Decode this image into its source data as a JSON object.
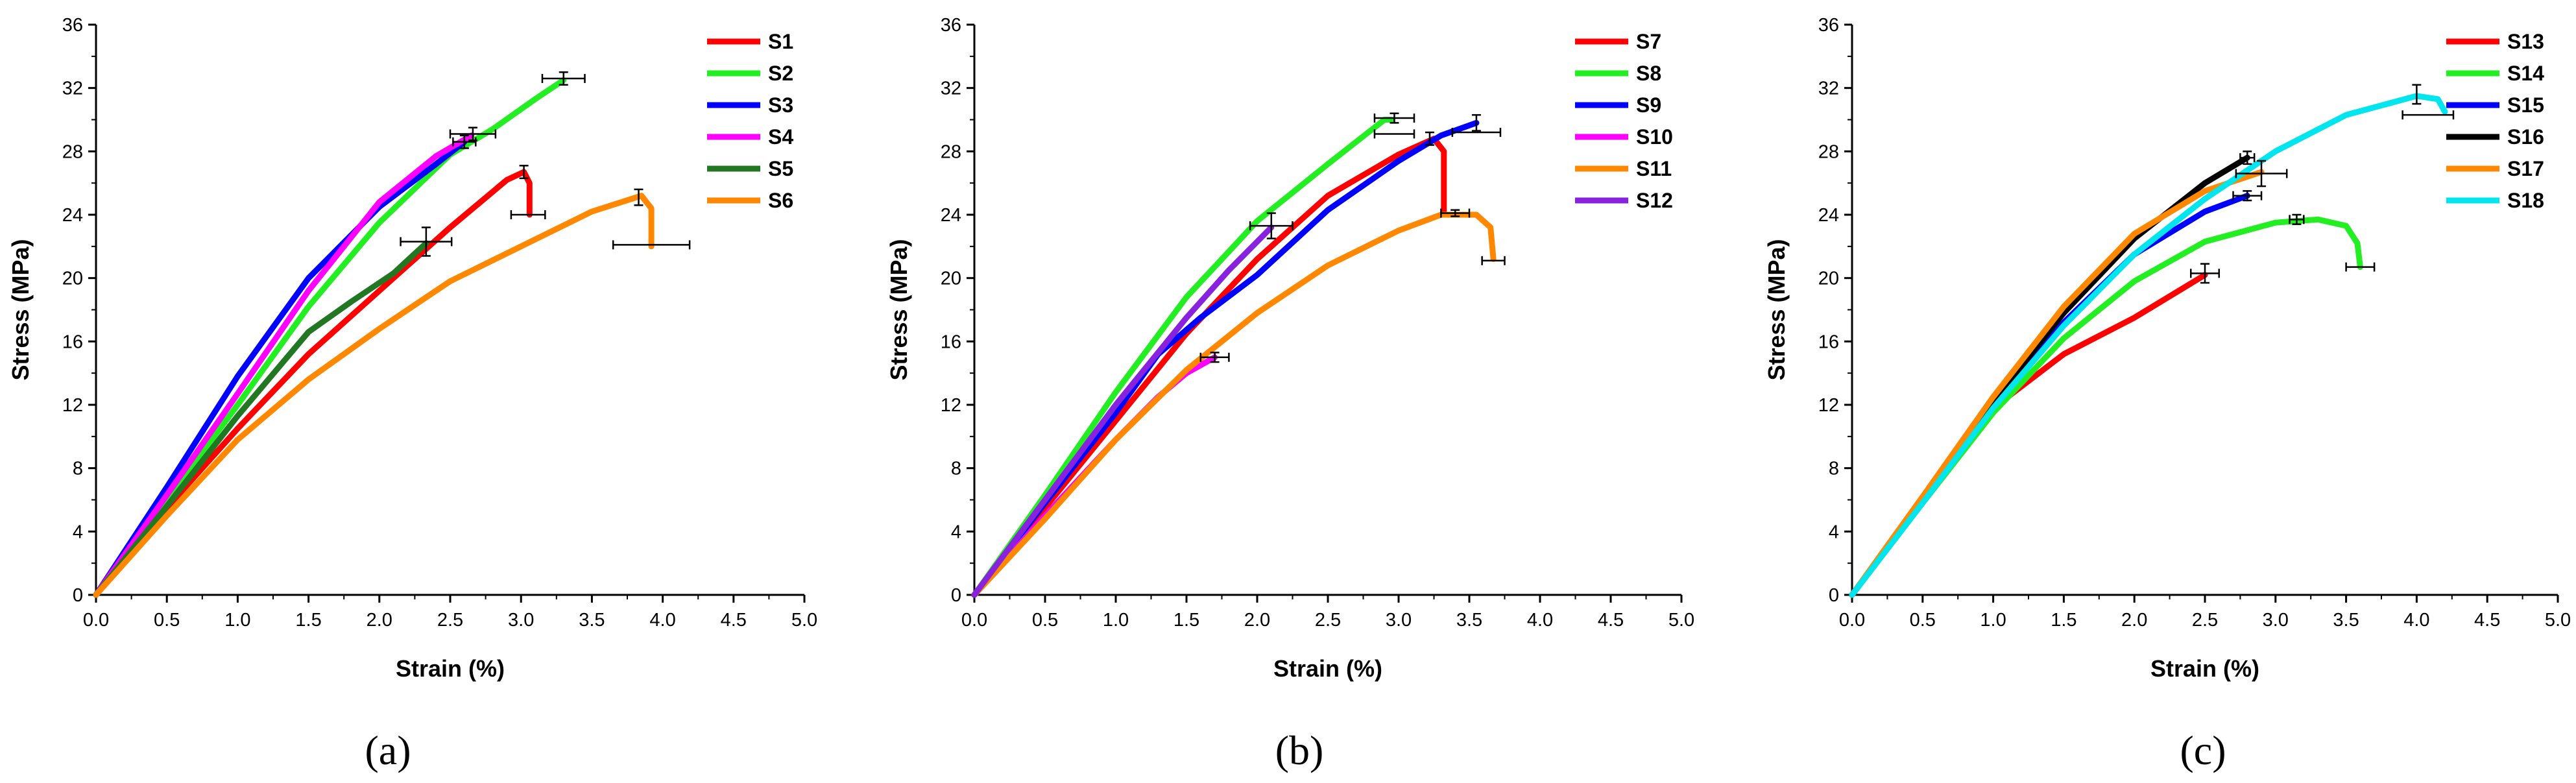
{
  "chart_data": [
    {
      "type": "line",
      "caption": "(a)",
      "xlabel": "Strain (%)",
      "ylabel": "Stress (MPa)",
      "xlim": [
        0,
        5
      ],
      "ylim": [
        0,
        36
      ],
      "xticks": [
        "0.0",
        "0.5",
        "1.0",
        "1.5",
        "2.0",
        "2.5",
        "3.0",
        "3.5",
        "4.0",
        "4.5",
        "5.0"
      ],
      "yticks": [
        "0",
        "4",
        "8",
        "12",
        "16",
        "20",
        "24",
        "28",
        "32",
        "36"
      ],
      "legend_position": "top-right",
      "series": [
        {
          "name": "S1",
          "color": "#ff0000",
          "points": [
            [
              0,
              0
            ],
            [
              0.5,
              5.5
            ],
            [
              1,
              10.5
            ],
            [
              1.5,
              15.2
            ],
            [
              2,
              19.2
            ],
            [
              2.5,
              23.2
            ],
            [
              2.9,
              26.2
            ],
            [
              3.02,
              26.7
            ],
            [
              3.06,
              26
            ],
            [
              3.06,
              24
            ]
          ],
          "err": {
            "x": 3.02,
            "y": 26.7,
            "xerr": 0,
            "yerr": 0.4,
            "x2": 3.05,
            "y2": 24,
            "xerr2": 0.12,
            "yerr2": 0
          }
        },
        {
          "name": "S2",
          "color": "#22ee22",
          "points": [
            [
              0,
              0
            ],
            [
              0.5,
              6
            ],
            [
              1,
              12
            ],
            [
              1.5,
              18.2
            ],
            [
              2,
              23.5
            ],
            [
              2.5,
              27.8
            ],
            [
              2.8,
              29.4
            ],
            [
              3.1,
              31.3
            ],
            [
              3.3,
              32.5
            ]
          ],
          "err": {
            "x": 3.3,
            "y": 32.6,
            "xerr": 0.15,
            "yerr": 0.4
          }
        },
        {
          "name": "S3",
          "color": "#0000ff",
          "points": [
            [
              0,
              0
            ],
            [
              0.5,
              6.8
            ],
            [
              1,
              13.8
            ],
            [
              1.5,
              20
            ],
            [
              2,
              24.5
            ],
            [
              2.4,
              27.2
            ],
            [
              2.6,
              28.6
            ]
          ],
          "err": {
            "x": 2.6,
            "y": 28.6,
            "xerr": 0.08,
            "yerr": 0.4
          }
        },
        {
          "name": "S4",
          "color": "#ff00ff",
          "points": [
            [
              0,
              0
            ],
            [
              0.5,
              6.3
            ],
            [
              1,
              12.7
            ],
            [
              1.5,
              19.2
            ],
            [
              2,
              24.8
            ],
            [
              2.4,
              27.7
            ],
            [
              2.65,
              29
            ]
          ],
          "err": {
            "x": 2.66,
            "y": 29.1,
            "xerr": 0.16,
            "yerr": 0.4
          }
        },
        {
          "name": "S5",
          "color": "#227722",
          "points": [
            [
              0,
              0
            ],
            [
              0.5,
              5.6
            ],
            [
              1,
              11.3
            ],
            [
              1.5,
              16.6
            ],
            [
              1.8,
              18.5
            ],
            [
              2.1,
              20.3
            ],
            [
              2.33,
              22.2
            ]
          ],
          "err": {
            "x": 2.33,
            "y": 22.3,
            "xerr": 0.18,
            "yerr": 0.9
          }
        },
        {
          "name": "S6",
          "color": "#ff8800",
          "points": [
            [
              0,
              0
            ],
            [
              0.5,
              5
            ],
            [
              1,
              9.8
            ],
            [
              1.5,
              13.6
            ],
            [
              2,
              16.8
            ],
            [
              2.5,
              19.8
            ],
            [
              3,
              22
            ],
            [
              3.5,
              24.2
            ],
            [
              3.85,
              25.2
            ],
            [
              3.92,
              24.4
            ],
            [
              3.92,
              22
            ]
          ],
          "err": {
            "x": 3.83,
            "y": 25.1,
            "xerr": 0,
            "yerr": 0.5,
            "x2": 3.92,
            "y2": 22.1,
            "xerr2": 0.27,
            "yerr2": 0
          }
        }
      ]
    },
    {
      "type": "line",
      "caption": "(b)",
      "xlabel": "Strain (%)",
      "ylabel": "Stress (MPa)",
      "xlim": [
        0,
        5
      ],
      "ylim": [
        0,
        36
      ],
      "xticks": [
        "0.0",
        "0.5",
        "1.0",
        "1.5",
        "2.0",
        "2.5",
        "3.0",
        "3.5",
        "4.0",
        "4.5",
        "5.0"
      ],
      "yticks": [
        "0",
        "4",
        "8",
        "12",
        "16",
        "20",
        "24",
        "28",
        "32",
        "36"
      ],
      "legend_position": "top-right",
      "series": [
        {
          "name": "S7",
          "color": "#ff0000",
          "points": [
            [
              0,
              0
            ],
            [
              0.5,
              5.5
            ],
            [
              1,
              11
            ],
            [
              1.5,
              16.5
            ],
            [
              2,
              21.2
            ],
            [
              2.5,
              25.2
            ],
            [
              3,
              27.8
            ],
            [
              3.25,
              28.8
            ],
            [
              3.32,
              28
            ],
            [
              3.32,
              24.2
            ]
          ],
          "err": {
            "x": 3.22,
            "y": 28.8,
            "xerr": 0,
            "yerr": 0.4
          }
        },
        {
          "name": "S8",
          "color": "#22ee22",
          "points": [
            [
              0,
              0
            ],
            [
              0.5,
              6.3
            ],
            [
              1,
              12.8
            ],
            [
              1.5,
              18.8
            ],
            [
              2,
              23.6
            ],
            [
              2.5,
              27.2
            ],
            [
              2.9,
              30
            ],
            [
              2.95,
              30
            ]
          ],
          "err": {
            "x": 2.97,
            "y": 30.1,
            "xerr": 0.14,
            "yerr": 0.3,
            "x2": 2.97,
            "y2": 29.1,
            "xerr2": 0.14,
            "yerr2": 0
          }
        },
        {
          "name": "S9",
          "color": "#0000ff",
          "points": [
            [
              0,
              0
            ],
            [
              0.5,
              5.8
            ],
            [
              1,
              11.5
            ],
            [
              1.3,
              15.2
            ],
            [
              1.6,
              17.5
            ],
            [
              2,
              20.2
            ],
            [
              2.5,
              24.3
            ],
            [
              3,
              27.4
            ],
            [
              3.3,
              29
            ],
            [
              3.55,
              29.8
            ]
          ],
          "err": {
            "x": 3.55,
            "y": 29.8,
            "xerr": 0,
            "yerr": 0.5,
            "x2": 3.55,
            "y2": 29.2,
            "xerr2": 0.17,
            "yerr2": 0
          }
        },
        {
          "name": "S10",
          "color": "#ff00ff",
          "points": [
            [
              0,
              0
            ],
            [
              0.5,
              5
            ],
            [
              1,
              9.8
            ],
            [
              1.3,
              12.5
            ],
            [
              1.5,
              14
            ],
            [
              1.7,
              15
            ]
          ],
          "err": {
            "x": 1.7,
            "y": 15,
            "xerr": 0.1,
            "yerr": 0.3
          }
        },
        {
          "name": "S11",
          "color": "#ff8800",
          "points": [
            [
              0,
              0
            ],
            [
              0.5,
              4.8
            ],
            [
              1,
              9.8
            ],
            [
              1.5,
              14.2
            ],
            [
              2,
              17.8
            ],
            [
              2.5,
              20.8
            ],
            [
              3,
              23
            ],
            [
              3.3,
              24
            ],
            [
              3.55,
              24
            ],
            [
              3.65,
              23.2
            ],
            [
              3.67,
              21.2
            ]
          ],
          "err": {
            "x": 3.4,
            "y": 24.1,
            "xerr": 0.1,
            "yerr": 0.2,
            "x2": 3.67,
            "y2": 21.1,
            "xerr2": 0.08,
            "yerr2": 0
          }
        },
        {
          "name": "S12",
          "color": "#8822dd",
          "points": [
            [
              0,
              0
            ],
            [
              0.5,
              6
            ],
            [
              1,
              12
            ],
            [
              1.5,
              17.5
            ],
            [
              1.8,
              20.5
            ],
            [
              2.1,
              23.2
            ]
          ],
          "err": {
            "x": 2.1,
            "y": 23.3,
            "xerr": 0.15,
            "yerr": 0.8
          }
        }
      ]
    },
    {
      "type": "line",
      "caption": "(c)",
      "xlabel": "Strain (%)",
      "ylabel": "Stress (MPa)",
      "xlim": [
        0,
        5
      ],
      "ylim": [
        0,
        36
      ],
      "xticks": [
        "0.0",
        "0.5",
        "1.0",
        "1.5",
        "2.0",
        "2.5",
        "3.0",
        "3.5",
        "4.0",
        "4.5",
        "5.0"
      ],
      "yticks": [
        "0",
        "4",
        "8",
        "12",
        "16",
        "20",
        "24",
        "28",
        "32",
        "36"
      ],
      "legend_position": "top-right",
      "series": [
        {
          "name": "S13",
          "color": "#ff0000",
          "points": [
            [
              0,
              0
            ],
            [
              0.5,
              6
            ],
            [
              1,
              11.8
            ],
            [
              1.5,
              15.2
            ],
            [
              2,
              17.5
            ],
            [
              2.5,
              20.2
            ]
          ],
          "err": {
            "x": 2.5,
            "y": 20.3,
            "xerr": 0.1,
            "yerr": 0.6
          }
        },
        {
          "name": "S14",
          "color": "#22ee22",
          "points": [
            [
              0,
              0
            ],
            [
              0.5,
              5.8
            ],
            [
              1,
              11.5
            ],
            [
              1.5,
              16.2
            ],
            [
              2,
              19.8
            ],
            [
              2.5,
              22.3
            ],
            [
              3,
              23.5
            ],
            [
              3.3,
              23.7
            ],
            [
              3.5,
              23.3
            ],
            [
              3.58,
              22.2
            ],
            [
              3.6,
              20.7
            ]
          ],
          "err": {
            "x": 3.15,
            "y": 23.7,
            "xerr": 0.05,
            "yerr": 0.3,
            "x2": 3.6,
            "y2": 20.7,
            "xerr2": 0.1,
            "yerr2": 0
          }
        },
        {
          "name": "S15",
          "color": "#0000ff",
          "points": [
            [
              0,
              0
            ],
            [
              0.5,
              6
            ],
            [
              1,
              12
            ],
            [
              1.5,
              17.2
            ],
            [
              2,
              21.5
            ],
            [
              2.5,
              24.2
            ],
            [
              2.8,
              25.2
            ]
          ],
          "err": {
            "x": 2.8,
            "y": 25.2,
            "xerr": 0.1,
            "yerr": 0.3
          }
        },
        {
          "name": "S16",
          "color": "#000000",
          "points": [
            [
              0,
              0
            ],
            [
              0.5,
              6
            ],
            [
              1,
              12.2
            ],
            [
              1.5,
              17.8
            ],
            [
              2,
              22.5
            ],
            [
              2.5,
              26
            ],
            [
              2.8,
              27.6
            ]
          ],
          "err": {
            "x": 2.8,
            "y": 27.6,
            "xerr": 0.05,
            "yerr": 0.4
          }
        },
        {
          "name": "S17",
          "color": "#ff8800",
          "points": [
            [
              0,
              0
            ],
            [
              0.5,
              6.2
            ],
            [
              1,
              12.5
            ],
            [
              1.5,
              18.2
            ],
            [
              2,
              22.8
            ],
            [
              2.5,
              25.5
            ],
            [
              2.9,
              26.7
            ]
          ],
          "err": {
            "x": 2.9,
            "y": 26.6,
            "xerr": 0.18,
            "yerr": 0.8
          }
        },
        {
          "name": "S18",
          "color": "#00e5ee",
          "points": [
            [
              0,
              0
            ],
            [
              0.5,
              5.8
            ],
            [
              1,
              11.8
            ],
            [
              1.5,
              17
            ],
            [
              2,
              21.5
            ],
            [
              2.5,
              25
            ],
            [
              3,
              28
            ],
            [
              3.5,
              30.3
            ],
            [
              4,
              31.5
            ],
            [
              4.15,
              31.3
            ],
            [
              4.2,
              30.5
            ]
          ],
          "err": {
            "x": 4.0,
            "y": 31.6,
            "xerr": 0,
            "yerr": 0.6,
            "x2": 4.08,
            "y2": 30.3,
            "xerr2": 0.18,
            "yerr2": 0
          }
        }
      ]
    }
  ]
}
